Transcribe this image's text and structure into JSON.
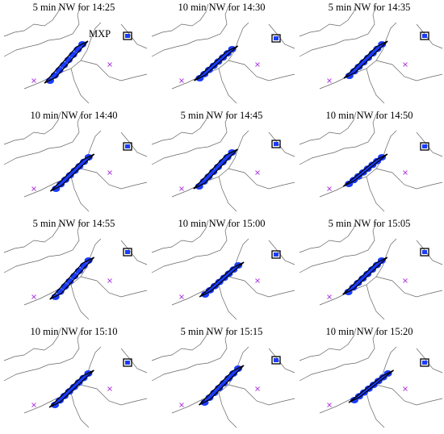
{
  "panels": [
    {
      "title": "5 min NW for 14:25",
      "label": "MXP"
    },
    {
      "title": "10 min NW for 14:30"
    },
    {
      "title": "5 min NW for 14:35"
    },
    {
      "title": "10 min NW for 14:40"
    },
    {
      "title": "5 min NW for 14:45"
    },
    {
      "title": "10 min NW for 14:50"
    },
    {
      "title": "5 min NW for 14:55"
    },
    {
      "title": "10 min NW for 15:00"
    },
    {
      "title": "5 min NW for 15:05"
    },
    {
      "title": "10 min NW for 15:10"
    },
    {
      "title": "5 min NW for 15:15"
    },
    {
      "title": "10 min NW for 15:20"
    }
  ]
}
